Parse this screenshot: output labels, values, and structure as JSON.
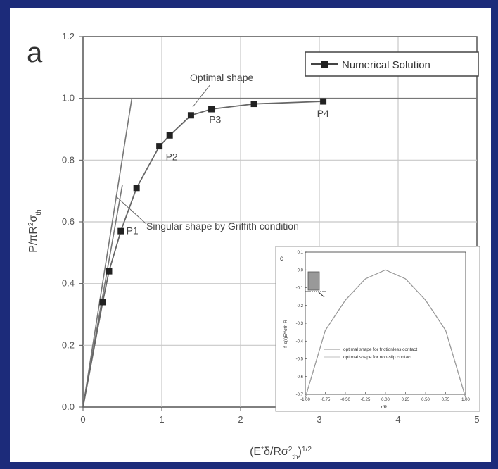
{
  "chart_data": [
    {
      "panel": "a",
      "type": "line",
      "xlabel": "(E*δ/Rσth²)^1/2",
      "ylabel": "P/πR²σth",
      "xlim": [
        0,
        5
      ],
      "ylim": [
        0,
        1.2
      ],
      "xticks": [
        "0",
        "1",
        "2",
        "3",
        "4",
        "5"
      ],
      "yticks": [
        "0.0",
        "0.2",
        "0.4",
        "0.6",
        "0.8",
        "1.0",
        "1.2"
      ],
      "grid": true,
      "legend": {
        "position": "top-right",
        "label": "Numerical Solution"
      },
      "series": [
        {
          "name": "Numerical Solution",
          "points": [
            [
              0.0,
              0.0
            ],
            [
              0.25,
              0.34
            ],
            [
              0.33,
              0.44
            ],
            [
              0.48,
              0.57
            ],
            [
              0.68,
              0.71
            ],
            [
              0.97,
              0.845
            ],
            [
              1.1,
              0.88
            ],
            [
              1.37,
              0.945
            ],
            [
              1.63,
              0.965
            ],
            [
              2.17,
              0.982
            ],
            [
              3.05,
              0.99
            ]
          ]
        }
      ],
      "reference_lines": [
        {
          "label": "Optimal shape",
          "from": [
            0,
            1.0
          ],
          "to": [
            5,
            1.0
          ]
        },
        {
          "label": "Optimal shape",
          "from": [
            0,
            0
          ],
          "to": [
            0.62,
            1.0
          ]
        },
        {
          "label": "Singular shape by Griffith condition",
          "from": [
            0,
            0
          ],
          "to": [
            0.5,
            0.72
          ]
        }
      ],
      "annotations": [
        {
          "text": "Optimal shape"
        },
        {
          "text": "Singular shape by Griffith condition"
        },
        {
          "text": "P1",
          "x": 0.55,
          "y": 0.56
        },
        {
          "text": "P2",
          "x": 1.05,
          "y": 0.8
        },
        {
          "text": "P3",
          "x": 1.6,
          "y": 0.92
        },
        {
          "text": "P4",
          "x": 2.97,
          "y": 0.94
        }
      ]
    },
    {
      "panel": "d",
      "type": "line",
      "xlabel": "r/R",
      "ylabel": "f_s(r)E*/σth R",
      "xlim": [
        -1.0,
        1.0
      ],
      "ylim": [
        -0.7,
        0.1
      ],
      "xticks": [
        "-1.00",
        "-0.75",
        "-0.50",
        "-0.25",
        "0.00",
        "0.25",
        "0.50",
        "0.75",
        "1.00"
      ],
      "yticks": [
        "0.1",
        "0.0",
        "-0.1",
        "-0.2",
        "-0.3",
        "-0.4",
        "-0.5",
        "-0.6",
        "-0.7"
      ],
      "legend": {
        "position": "center"
      },
      "series": [
        {
          "name": "optimal shape for frictionless contact",
          "x": [
            -1.0,
            -0.75,
            -0.5,
            -0.25,
            0.0,
            0.25,
            0.5,
            0.75,
            1.0
          ],
          "y": [
            -0.72,
            -0.34,
            -0.17,
            -0.05,
            0.0,
            -0.05,
            -0.17,
            -0.34,
            -0.72
          ]
        },
        {
          "name": "optimal shape for non-slip contact",
          "x": [
            -1.0,
            -0.75,
            -0.5,
            -0.25,
            0.0,
            0.25,
            0.5,
            0.75,
            1.0
          ],
          "y": [
            -0.72,
            -0.34,
            -0.17,
            -0.05,
            0.0,
            -0.05,
            -0.17,
            -0.34,
            -0.72
          ]
        }
      ]
    }
  ],
  "text": {
    "panel_a": "a",
    "panel_d": "d",
    "legend_label": "Numerical Solution",
    "optimal_shape": "Optimal shape",
    "singular_shape": "Singular shape by Griffith condition",
    "p1": "P1",
    "p2": "P2",
    "p3": "P3",
    "p4": "P4",
    "inset_legend_1": "optimal shape for frictionless contact",
    "inset_legend_2": "optimal shape for non-slip contact",
    "inset_xlabel": "r/R",
    "inset_ylabel": "f_s(r)E*/σth R"
  },
  "colors": {
    "background_border": "#1c2b7a",
    "grid": "#c8c8c8",
    "line": "#666666",
    "marker": "#222222"
  }
}
